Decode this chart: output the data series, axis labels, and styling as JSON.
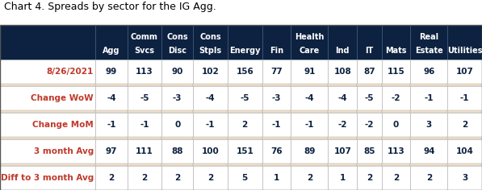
{
  "title": "Chart 4. Spreads by sector for the IG Agg.",
  "col_widths_raw": [
    1.75,
    0.58,
    0.63,
    0.58,
    0.63,
    0.63,
    0.53,
    0.68,
    0.53,
    0.45,
    0.53,
    0.68,
    0.63
  ],
  "header_line1": [
    "",
    "",
    "Comm",
    "Cons",
    "Cons",
    "",
    "",
    "Health",
    "",
    "",
    "",
    "Real",
    ""
  ],
  "header_line2": [
    "",
    "Agg",
    "Svcs",
    "Disc",
    "Stpls",
    "Energy",
    "Fin",
    "Care",
    "Ind",
    "IT",
    "Mats",
    "Estate",
    "Utilities"
  ],
  "rows": [
    {
      "label": "8/26/2021",
      "values": [
        99,
        113,
        90,
        102,
        156,
        77,
        91,
        108,
        87,
        115,
        96,
        107
      ]
    },
    {
      "label": "Change WoW",
      "values": [
        -4,
        -5,
        -3,
        -4,
        -5,
        -3,
        -4,
        -4,
        -5,
        -2,
        -1,
        -1
      ]
    },
    {
      "label": "Change MoM",
      "values": [
        -1,
        -1,
        0,
        -1,
        2,
        -1,
        -1,
        -2,
        -2,
        0,
        3,
        2
      ]
    },
    {
      "label": "3 month Avg",
      "values": [
        97,
        111,
        88,
        100,
        151,
        76,
        89,
        107,
        85,
        113,
        94,
        104
      ]
    },
    {
      "label": "Diff to 3 month Avg",
      "values": [
        2,
        2,
        2,
        2,
        5,
        1,
        2,
        1,
        2,
        2,
        2,
        3
      ]
    }
  ],
  "header_bg": "#0d2240",
  "header_fg": "#ffffff",
  "data_bg": "#ffffff",
  "spacer_bg": "#f0dfc8",
  "data_fg": "#0d2240",
  "label_fg": "#c0392b",
  "title_fg": "#000000",
  "border_color": "#aaaaaa",
  "title_fontsize": 9,
  "cell_fontsize": 7.5,
  "header_fontsize": 7.0,
  "fig_width": 5.97,
  "fig_height": 2.36,
  "dpi": 100
}
